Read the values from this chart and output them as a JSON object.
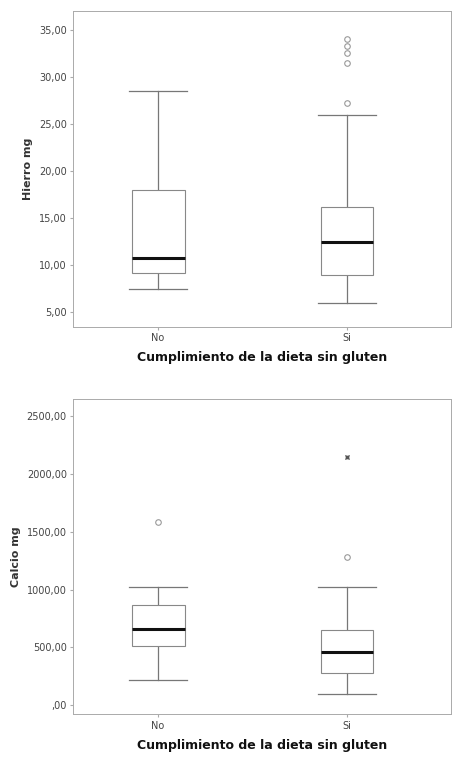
{
  "hierro": {
    "ylabel": "Hierro mg",
    "xlabel": "Cumplimiento de la dieta sin gluten",
    "ylim": [
      3.5,
      37.0
    ],
    "yticks": [
      5.0,
      10.0,
      15.0,
      20.0,
      25.0,
      30.0,
      35.0
    ],
    "ytick_labels": [
      "5,00",
      "10,00",
      "15,00",
      "20,00",
      "25,00",
      "30,00",
      "35,00"
    ],
    "categories": [
      "No",
      "Si"
    ],
    "boxes": [
      {
        "q1": 9.2,
        "median": 10.8,
        "q3": 18.0,
        "whisker_low": 7.5,
        "whisker_high": 28.5,
        "outliers": [],
        "star_fliers": []
      },
      {
        "q1": 9.0,
        "median": 12.5,
        "q3": 16.2,
        "whisker_low": 6.0,
        "whisker_high": 26.0,
        "outliers": [
          27.2,
          31.5,
          32.5,
          33.3,
          34.0
        ],
        "star_fliers": []
      }
    ]
  },
  "calcio": {
    "ylabel": "Calcio mg",
    "xlabel": "Cumplimiento de la dieta sin gluten",
    "ylim": [
      -80,
      2650
    ],
    "yticks": [
      0.0,
      500.0,
      1000.0,
      1500.0,
      2000.0,
      2500.0
    ],
    "ytick_labels": [
      ",00",
      "500,00",
      "1000,00",
      "1500,00",
      "2000,00",
      "2500,00"
    ],
    "categories": [
      "No",
      "Si"
    ],
    "boxes": [
      {
        "q1": 510.0,
        "median": 660.0,
        "q3": 870.0,
        "whisker_low": 220.0,
        "whisker_high": 1020.0,
        "outliers": [
          1580.0
        ],
        "star_fliers": []
      },
      {
        "q1": 280.0,
        "median": 455.0,
        "q3": 650.0,
        "whisker_low": 100.0,
        "whisker_high": 1020.0,
        "outliers": [
          1280.0
        ],
        "star_fliers": [
          2150.0
        ]
      }
    ]
  },
  "bg_color": "#ffffff",
  "plot_bg_color": "#ffffff",
  "box_color": "white",
  "median_color": "#111111",
  "whisker_color": "#777777",
  "outlier_color": "#999999",
  "star_color": "#555555",
  "box_edge_color": "#888888",
  "spine_color": "#aaaaaa",
  "xlabel_fontsize": 9,
  "ylabel_fontsize": 8,
  "tick_fontsize": 7,
  "box_width": 0.28,
  "positions": [
    1,
    2
  ],
  "xlim": [
    0.55,
    2.55
  ]
}
